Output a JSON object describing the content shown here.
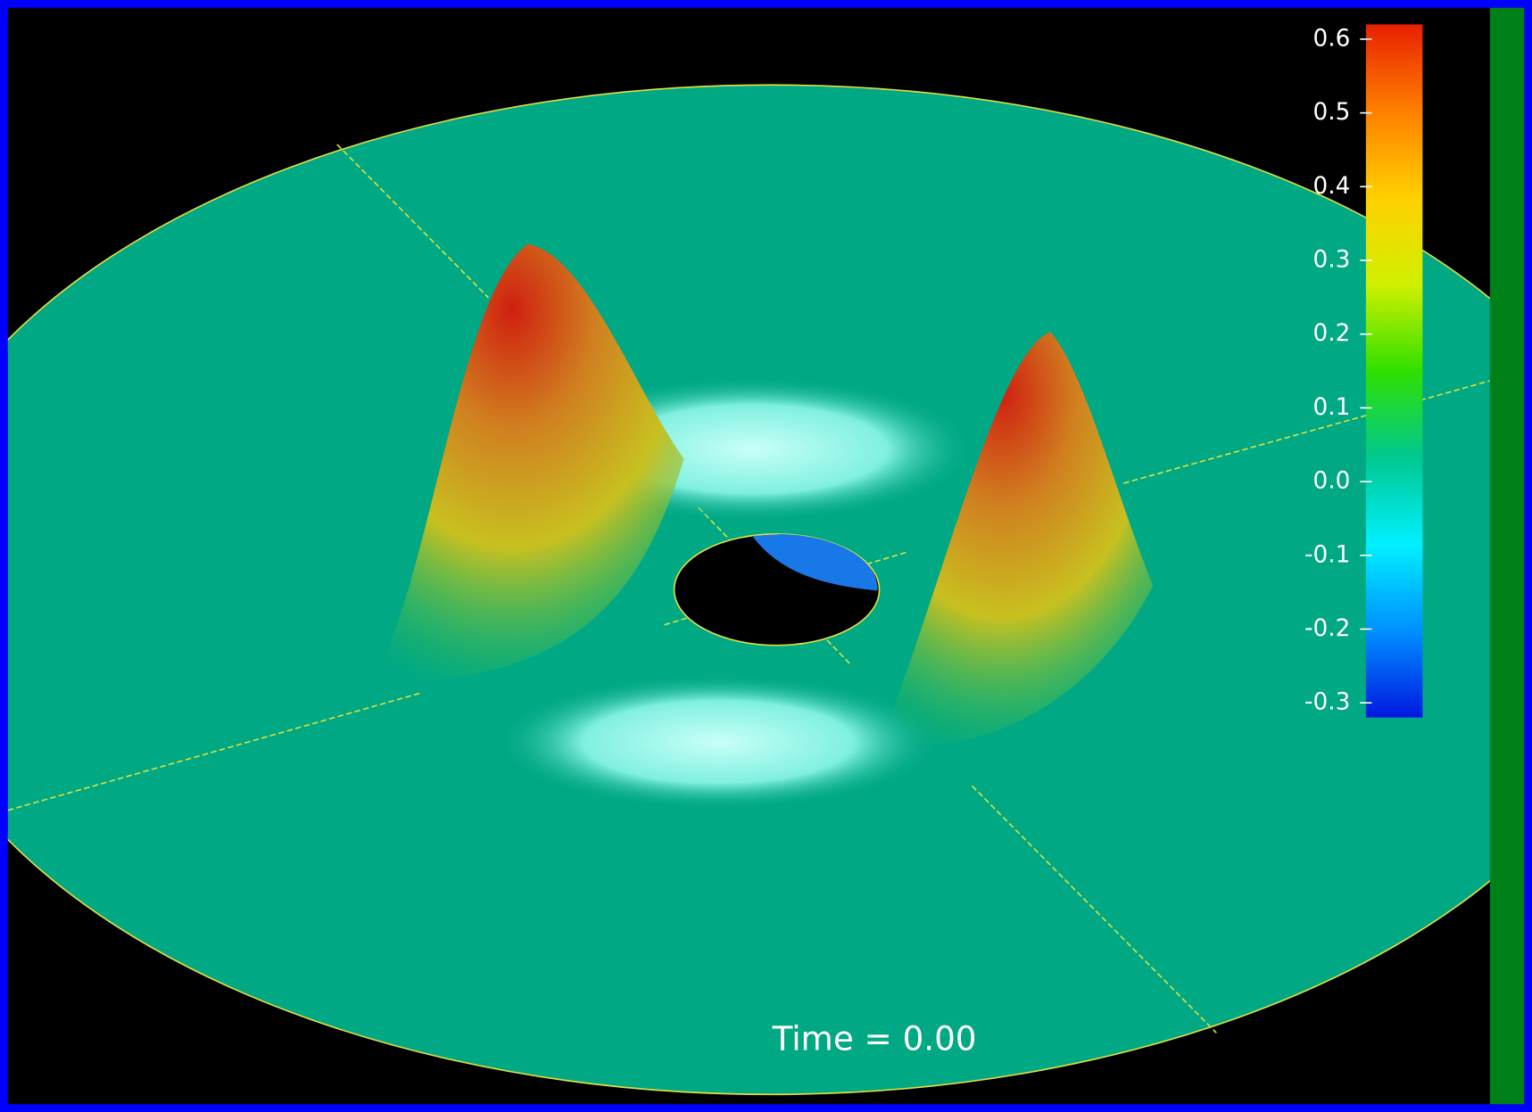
{
  "colorbar": {
    "lim": [
      -0.32,
      0.62
    ],
    "ticks": [
      0.6,
      0.5,
      0.4,
      0.3,
      0.2,
      0.1,
      {
        "value": 0,
        "label": "0.0"
      },
      -0.1,
      -0.2,
      -0.3
    ],
    "colors": [
      "#0018e0",
      "#0090ff",
      "#00f0ff",
      "#00c890",
      "#30e000",
      "#d0f000",
      "#ffd000",
      "#ff8000",
      "#e82000"
    ]
  },
  "time_label": "Time =  0.00"
}
